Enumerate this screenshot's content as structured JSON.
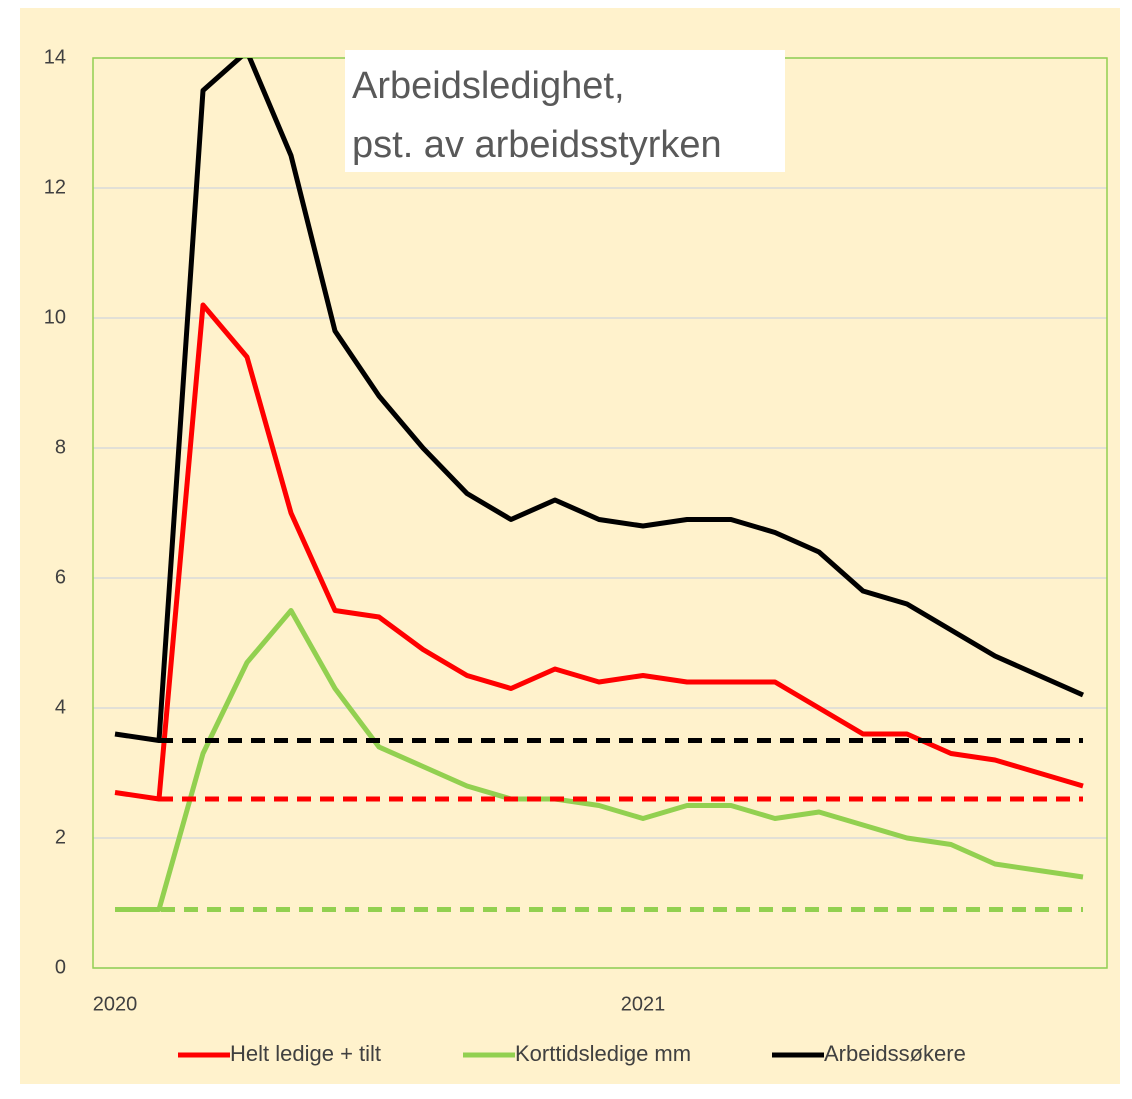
{
  "chart_data": {
    "type": "line",
    "title": [
      "Arbeidsledighet,",
      "pst. av arbeidsstyrken"
    ],
    "categories": [
      "2020",
      null,
      null,
      null,
      null,
      null,
      null,
      null,
      null,
      null,
      null,
      null,
      "2021",
      null,
      null,
      null,
      null,
      null,
      null,
      null,
      null,
      null,
      null
    ],
    "series": [
      {
        "name": "Helt ledige + tilt",
        "color": "#ff0000",
        "values": [
          2.7,
          2.6,
          10.2,
          9.4,
          7.0,
          5.5,
          5.4,
          4.9,
          4.5,
          4.3,
          4.6,
          4.4,
          4.5,
          4.4,
          4.4,
          4.4,
          4.0,
          3.6,
          3.6,
          3.3,
          3.2,
          3.0,
          2.8
        ]
      },
      {
        "name": "Korttidsledige mm",
        "color": "#92d050",
        "values": [
          0.9,
          0.9,
          3.3,
          4.7,
          5.5,
          4.3,
          3.4,
          3.1,
          2.8,
          2.6,
          2.6,
          2.5,
          2.3,
          2.5,
          2.5,
          2.3,
          2.4,
          2.2,
          2.0,
          1.9,
          1.6,
          1.5,
          1.4
        ]
      },
      {
        "name": "Arbeidssøkere",
        "color": "#000000",
        "values": [
          3.6,
          3.5,
          13.5,
          14.1,
          12.5,
          9.8,
          8.8,
          8.0,
          7.3,
          6.9,
          7.2,
          6.9,
          6.8,
          6.9,
          6.9,
          6.7,
          6.4,
          5.8,
          5.6,
          5.2,
          4.8,
          4.5,
          4.2
        ]
      },
      {
        "color": "#ff0000",
        "dashed": true,
        "values": [
          null,
          2.6,
          2.6,
          2.6,
          2.6,
          2.6,
          2.6,
          2.6,
          2.6,
          2.6,
          2.6,
          2.6,
          2.6,
          2.6,
          2.6,
          2.6,
          2.6,
          2.6,
          2.6,
          2.6,
          2.6,
          2.6,
          2.6
        ]
      },
      {
        "color": "#92d050",
        "dashed": true,
        "values": [
          0.9,
          0.9,
          0.9,
          0.9,
          0.9,
          0.9,
          0.9,
          0.9,
          0.9,
          0.9,
          0.9,
          0.9,
          0.9,
          0.9,
          0.9,
          0.9,
          0.9,
          0.9,
          0.9,
          0.9,
          0.9,
          0.9,
          0.9
        ]
      },
      {
        "color": "#000000",
        "dashed": true,
        "values": [
          null,
          3.5,
          3.5,
          3.5,
          3.5,
          3.5,
          3.5,
          3.5,
          3.5,
          3.5,
          3.5,
          3.5,
          3.5,
          3.5,
          3.5,
          3.5,
          3.5,
          3.5,
          3.5,
          3.5,
          3.5,
          3.5,
          3.5
        ]
      }
    ],
    "ylim": [
      0,
      14
    ],
    "yticks": [
      0,
      2,
      4,
      6,
      8,
      10,
      12,
      14
    ],
    "grid": true,
    "legend": "bottom"
  }
}
